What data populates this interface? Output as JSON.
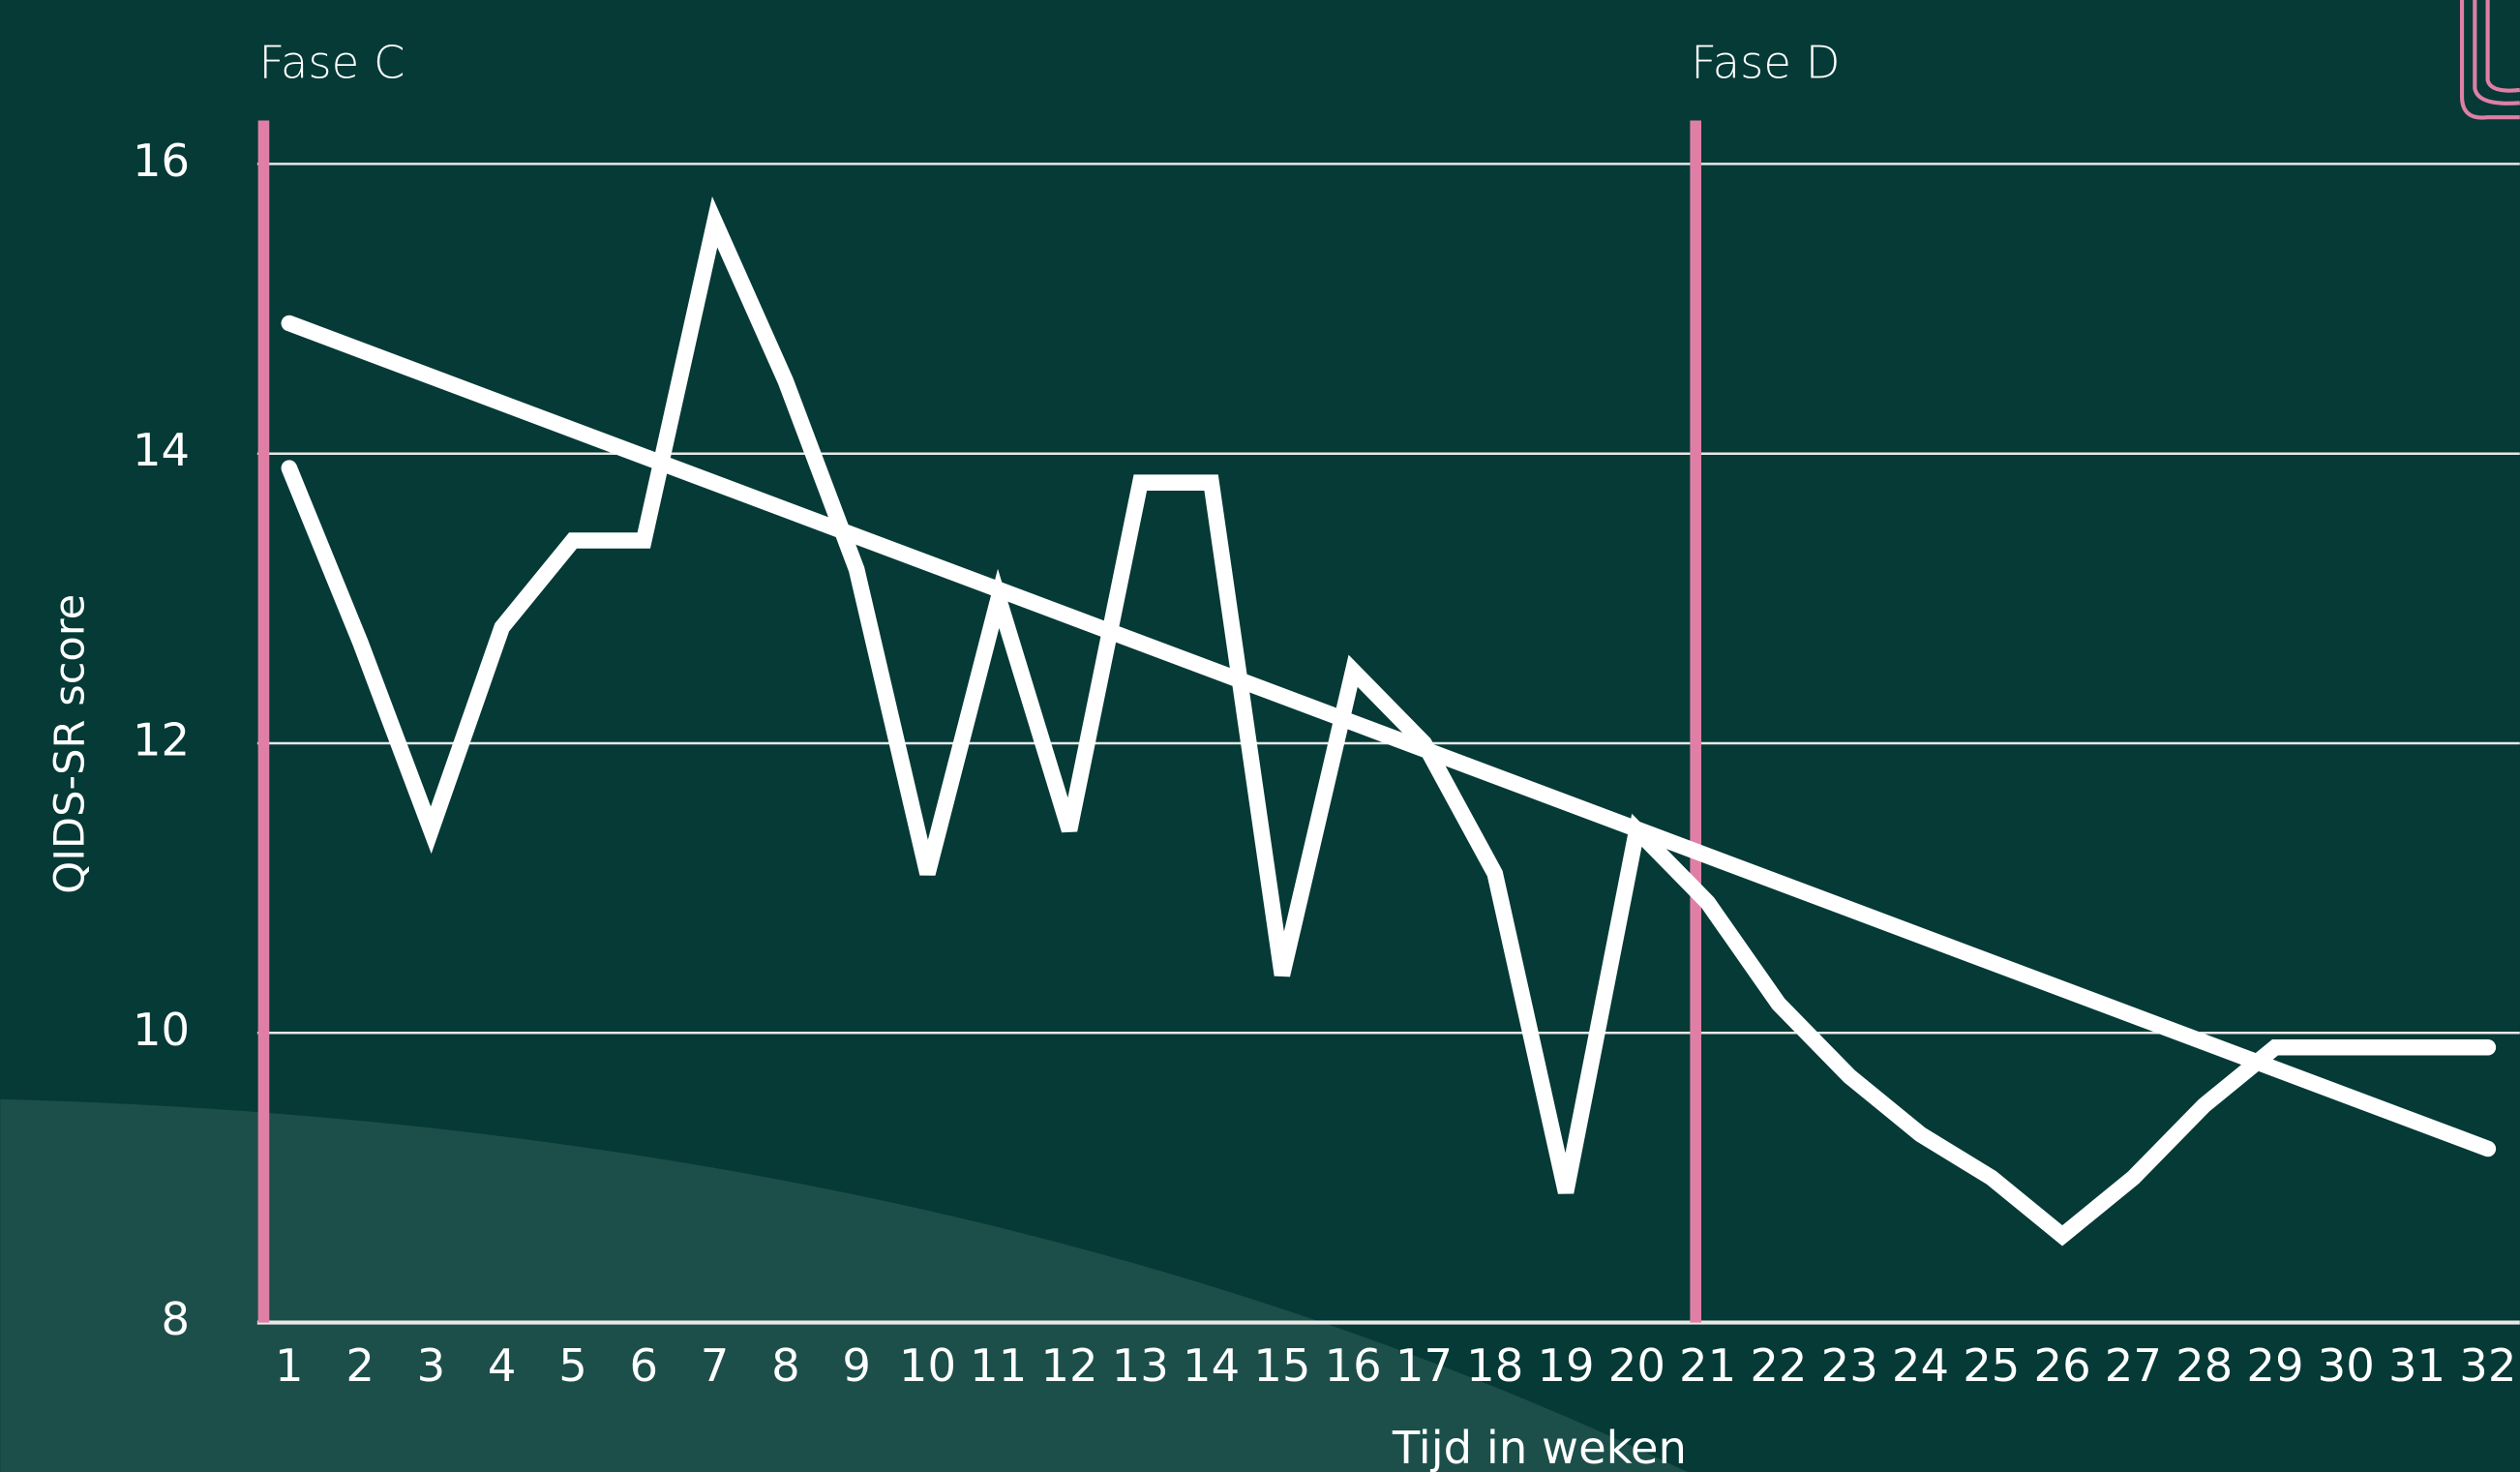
{
  "chart_data": {
    "type": "line",
    "x_label": "Tijd in weken",
    "y_label": "QIDS-SR score",
    "x": [
      1,
      2,
      3,
      4,
      5,
      6,
      7,
      8,
      9,
      10,
      11,
      12,
      13,
      14,
      15,
      16,
      17,
      18,
      19,
      20,
      21,
      22,
      23,
      24,
      25,
      26,
      27,
      28,
      29,
      30,
      31,
      32
    ],
    "series": [
      {
        "color": "#ffffff",
        "values": [
          13.9,
          12.7,
          11.4,
          12.8,
          13.4,
          13.4,
          15.6,
          14.5,
          13.2,
          11.1,
          13.0,
          11.4,
          13.8,
          13.8,
          10.4,
          12.5,
          12.0,
          11.1,
          8.9,
          11.4,
          10.9,
          10.2,
          9.7,
          9.3,
          9.0,
          8.6,
          9.0,
          9.5,
          9.9,
          9.9,
          9.9,
          9.9
        ]
      }
    ],
    "trendline": {
      "color": "#ffffff",
      "x": [
        1,
        32
      ],
      "values": [
        14.9,
        9.2
      ]
    },
    "phases": [
      {
        "label": "Fase C",
        "x": 0.64,
        "color": "#e07fa6"
      },
      {
        "label": "Fase D",
        "x": 20.83,
        "color": "#e07fa6"
      }
    ],
    "xlim": [
      0.55,
      32.45
    ],
    "xticks": [
      1,
      2,
      3,
      4,
      5,
      6,
      7,
      8,
      9,
      10,
      11,
      12,
      13,
      14,
      15,
      16,
      17,
      18,
      19,
      20,
      21,
      22,
      23,
      24,
      25,
      26,
      27,
      28,
      29,
      30,
      31,
      32
    ],
    "ylim": [
      8,
      16.3
    ],
    "yticks": [
      8,
      10,
      12,
      14,
      16
    ],
    "grid": true
  }
}
